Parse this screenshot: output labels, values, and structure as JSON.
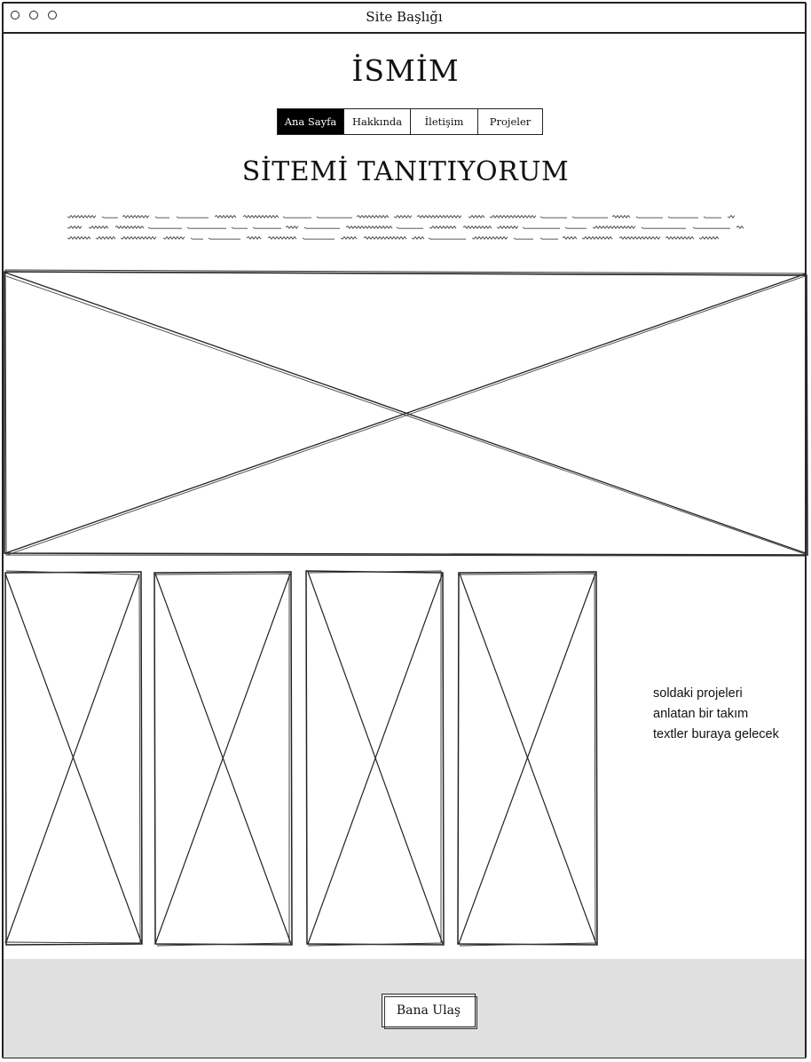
{
  "window": {
    "title": "Site Başlığı",
    "controls": [
      "circle-icon",
      "circle-icon",
      "circle-icon"
    ]
  },
  "header": {
    "name": "İSMİM"
  },
  "nav": {
    "items": [
      {
        "label": "Ana Sayfa",
        "active": true
      },
      {
        "label": "Hakkında",
        "active": false
      },
      {
        "label": "İletişim",
        "active": false
      },
      {
        "label": "Projeler",
        "active": false
      }
    ]
  },
  "intro": {
    "heading": "SİTEMİ TANITIYORUM"
  },
  "projects": {
    "description": "soldaki projeleri anlatan bir takım textler buraya gelecek"
  },
  "footer": {
    "contact_label": "Bana Ulaş"
  },
  "colors": {
    "line": "#222222",
    "footer_bg": "#e0e0e0",
    "active_nav_bg": "#000000"
  }
}
